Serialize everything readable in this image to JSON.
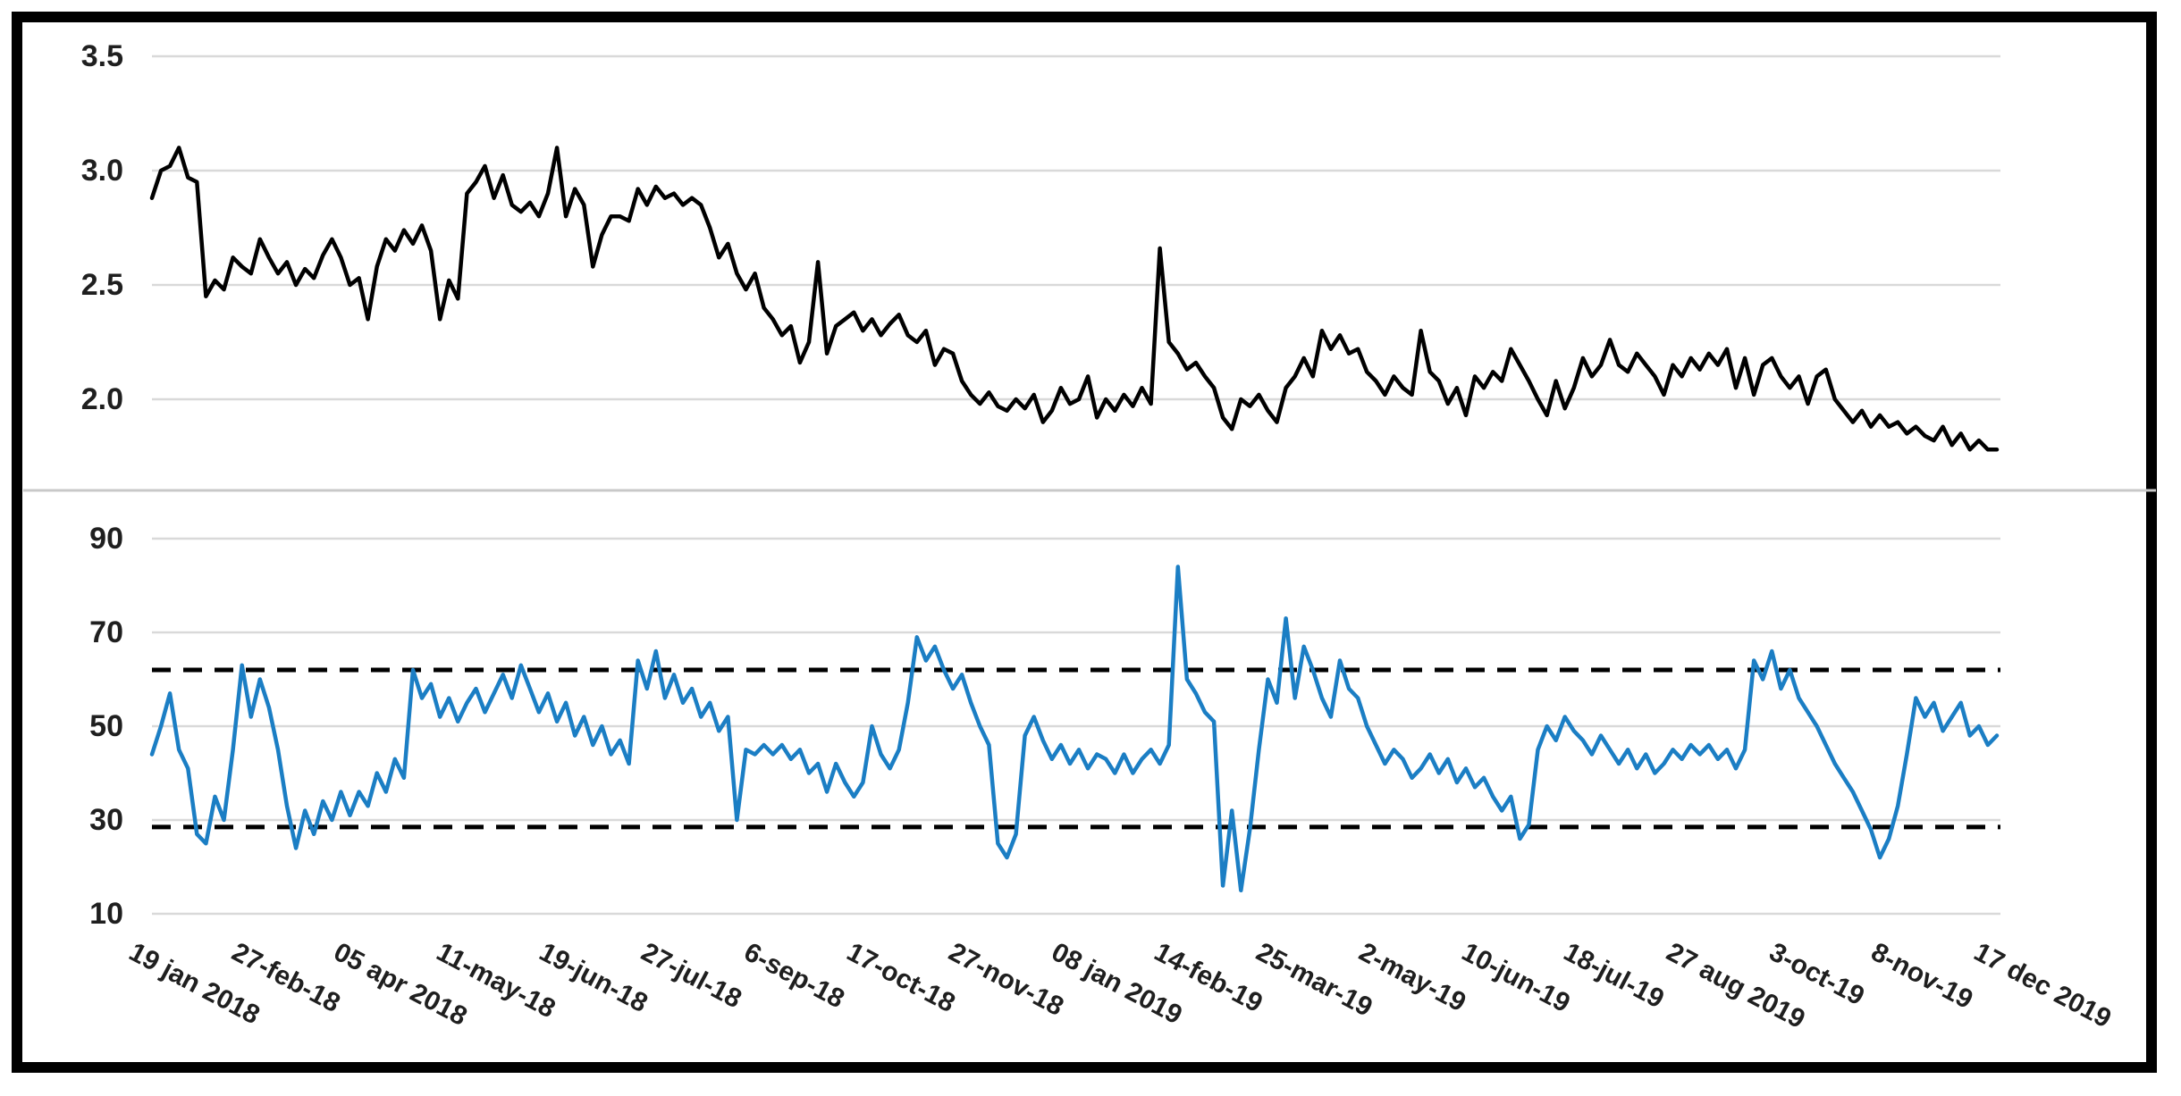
{
  "page": {
    "background": "#ffffff",
    "frame_color": "#000000"
  },
  "colors": {
    "price_line": "#000000",
    "oscillator_line": "#1b7ec4",
    "gridline": "#d9d9d9",
    "panel_divider": "#c8c8c8",
    "threshold_dashed": "#000000",
    "label_text": "#1f1f1f"
  },
  "axes": {
    "x": {
      "labels": [
        "19 jan 2018",
        "27-feb-18",
        "05 apr 2018",
        "11-may-18",
        "19-jun-18",
        "27-jul-18",
        "6-sep-18",
        "17-oct-18",
        "27-nov-18",
        "08 jan 2019",
        "14-feb-19",
        "25-mar-19",
        "2-may-19",
        "10-jun-19",
        "18-jul-19",
        "27 aug 2019",
        "3-oct-19",
        "8-nov-19",
        "17 dec 2019"
      ]
    },
    "y_top": {
      "tick_labels": [
        "3.5",
        "3.0",
        "2.5",
        "2.0"
      ],
      "tick_values": [
        3.5,
        3.0,
        2.5,
        2.0
      ]
    },
    "y_bottom": {
      "tick_labels": [
        "90",
        "70",
        "50",
        "30",
        "10"
      ],
      "tick_values": [
        90,
        70,
        50,
        30,
        10
      ]
    }
  },
  "chart_data": [
    {
      "type": "line",
      "panel": "top",
      "title": "",
      "series_name": "price",
      "line_color": "#000000",
      "xlabel": "",
      "ylabel": "",
      "x_start": "19 jan 2018",
      "x_end": "17 dec 2019",
      "x_spacing": "evenly spaced samples between x_start and x_end",
      "yticks": [
        3.5,
        3.0,
        2.5,
        2.0
      ],
      "ylim": [
        1.7,
        3.6
      ],
      "grid": true,
      "legend": false,
      "values": [
        2.88,
        3.0,
        3.02,
        3.1,
        2.97,
        2.95,
        2.45,
        2.52,
        2.48,
        2.62,
        2.58,
        2.55,
        2.7,
        2.62,
        2.55,
        2.6,
        2.5,
        2.57,
        2.53,
        2.63,
        2.7,
        2.62,
        2.5,
        2.53,
        2.35,
        2.58,
        2.7,
        2.65,
        2.74,
        2.68,
        2.76,
        2.65,
        2.35,
        2.52,
        2.44,
        2.9,
        2.95,
        3.02,
        2.88,
        2.98,
        2.85,
        2.82,
        2.86,
        2.8,
        2.9,
        3.1,
        2.8,
        2.92,
        2.85,
        2.58,
        2.72,
        2.8,
        2.8,
        2.78,
        2.92,
        2.85,
        2.93,
        2.88,
        2.9,
        2.85,
        2.88,
        2.85,
        2.75,
        2.62,
        2.68,
        2.55,
        2.48,
        2.55,
        2.4,
        2.35,
        2.28,
        2.32,
        2.16,
        2.25,
        2.6,
        2.2,
        2.32,
        2.35,
        2.38,
        2.3,
        2.35,
        2.28,
        2.33,
        2.37,
        2.28,
        2.25,
        2.3,
        2.15,
        2.22,
        2.2,
        2.08,
        2.02,
        1.98,
        2.03,
        1.97,
        1.95,
        2.0,
        1.96,
        2.02,
        1.9,
        1.95,
        2.05,
        1.98,
        2.0,
        2.1,
        1.92,
        2.0,
        1.95,
        2.02,
        1.97,
        2.05,
        1.98,
        2.66,
        2.25,
        2.2,
        2.13,
        2.16,
        2.1,
        2.05,
        1.92,
        1.87,
        2.0,
        1.97,
        2.02,
        1.95,
        1.9,
        2.05,
        2.1,
        2.18,
        2.1,
        2.3,
        2.22,
        2.28,
        2.2,
        2.22,
        2.12,
        2.08,
        2.02,
        2.1,
        2.05,
        2.02,
        2.3,
        2.12,
        2.08,
        1.98,
        2.05,
        1.93,
        2.1,
        2.05,
        2.12,
        2.08,
        2.22,
        2.15,
        2.08,
        2.0,
        1.93,
        2.08,
        1.96,
        2.05,
        2.18,
        2.1,
        2.15,
        2.26,
        2.15,
        2.12,
        2.2,
        2.15,
        2.1,
        2.02,
        2.15,
        2.1,
        2.18,
        2.13,
        2.2,
        2.15,
        2.22,
        2.05,
        2.18,
        2.02,
        2.15,
        2.18,
        2.1,
        2.05,
        2.1,
        1.98,
        2.1,
        2.13,
        2.0,
        1.95,
        1.9,
        1.95,
        1.88,
        1.93,
        1.88,
        1.9,
        1.85,
        1.88,
        1.84,
        1.82,
        1.88,
        1.8,
        1.85,
        1.78,
        1.82,
        1.78,
        1.78
      ]
    },
    {
      "type": "line",
      "panel": "bottom",
      "title": "",
      "series_name": "oscillator",
      "line_color": "#1b7ec4",
      "xlabel": "",
      "ylabel": "",
      "x_start": "19 jan 2018",
      "x_end": "17 dec 2019",
      "x_spacing": "evenly spaced samples between x_start and x_end",
      "yticks": [
        90,
        70,
        50,
        30,
        10
      ],
      "ylim": [
        5,
        95
      ],
      "grid": true,
      "legend": false,
      "thresholds": [
        62,
        28.5
      ],
      "values": [
        44,
        50,
        57,
        45,
        41,
        27,
        25,
        35,
        30,
        45,
        63,
        52,
        60,
        54,
        45,
        33,
        24,
        32,
        27,
        34,
        30,
        36,
        31,
        36,
        33,
        40,
        36,
        43,
        39,
        62,
        56,
        59,
        52,
        56,
        51,
        55,
        58,
        53,
        57,
        61,
        56,
        63,
        58,
        53,
        57,
        51,
        55,
        48,
        52,
        46,
        50,
        44,
        47,
        42,
        64,
        58,
        66,
        56,
        61,
        55,
        58,
        52,
        55,
        49,
        52,
        30,
        45,
        44,
        46,
        44,
        46,
        43,
        45,
        40,
        42,
        36,
        42,
        38,
        35,
        38,
        50,
        44,
        41,
        45,
        55,
        69,
        64,
        67,
        62,
        58,
        61,
        55,
        50,
        46,
        25,
        22,
        27,
        48,
        52,
        47,
        43,
        46,
        42,
        45,
        41,
        44,
        43,
        40,
        44,
        40,
        43,
        45,
        42,
        46,
        84,
        60,
        57,
        53,
        51,
        16,
        32,
        15,
        28,
        45,
        60,
        55,
        73,
        56,
        67,
        62,
        56,
        52,
        64,
        58,
        56,
        50,
        46,
        42,
        45,
        43,
        39,
        41,
        44,
        40,
        43,
        38,
        41,
        37,
        39,
        35,
        32,
        35,
        26,
        29,
        45,
        50,
        47,
        52,
        49,
        47,
        44,
        48,
        45,
        42,
        45,
        41,
        44,
        40,
        42,
        45,
        43,
        46,
        44,
        46,
        43,
        45,
        41,
        45,
        64,
        60,
        66,
        58,
        62,
        56,
        53,
        50,
        46,
        42,
        39,
        36,
        32,
        28,
        22,
        26,
        33,
        44,
        56,
        52,
        55,
        49,
        52,
        55,
        48,
        50,
        46,
        48
      ]
    }
  ]
}
